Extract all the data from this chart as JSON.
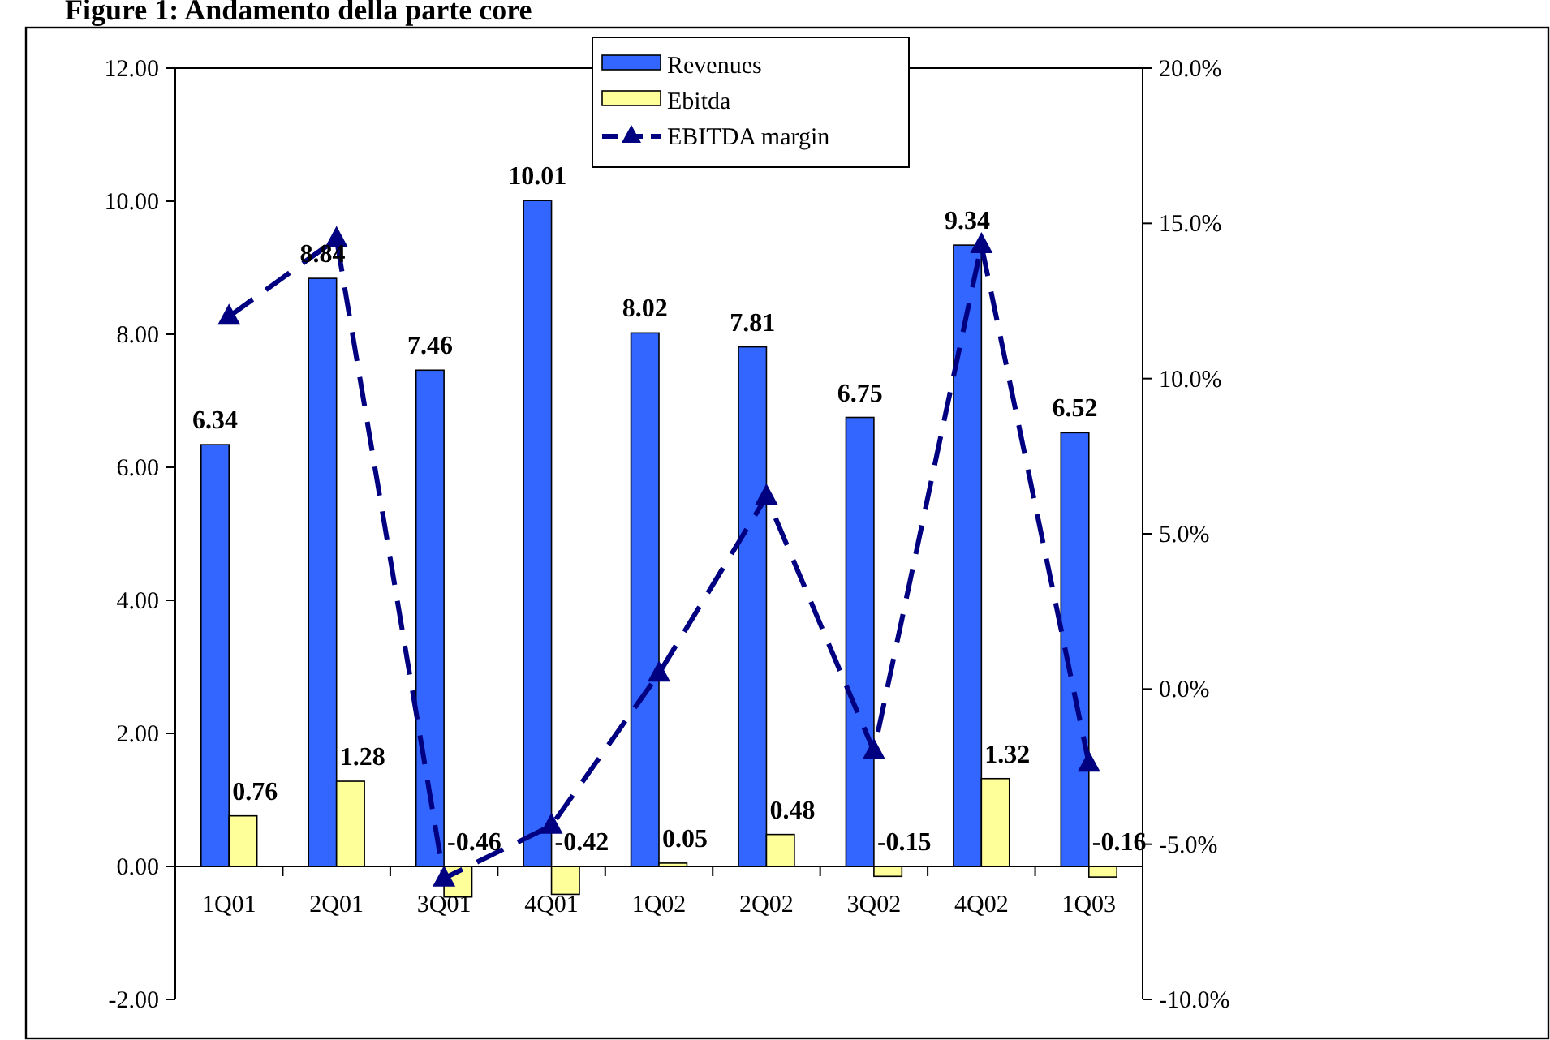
{
  "chart_data": {
    "type": "bar",
    "title": "Figure 1: Andamento della parte core",
    "categories": [
      "1Q01",
      "2Q01",
      "3Q01",
      "4Q01",
      "1Q02",
      "2Q02",
      "3Q02",
      "4Q02",
      "1Q03"
    ],
    "series": [
      {
        "name": "Revenues",
        "color": "#3366ff",
        "values": [
          6.34,
          8.84,
          7.46,
          10.01,
          8.02,
          7.81,
          6.75,
          9.34,
          6.52
        ],
        "value_labels": [
          "6.34",
          "8.84",
          "7.46",
          "10.01",
          "8.02",
          "7.81",
          "6.75",
          "9.34",
          "6.52"
        ]
      },
      {
        "name": "Ebitda",
        "color": "#ffff99",
        "values": [
          0.76,
          1.28,
          -0.46,
          -0.42,
          0.05,
          0.48,
          -0.15,
          1.32,
          -0.16
        ],
        "value_labels": [
          "0.76",
          "1.28",
          "-0.46",
          "-0.42",
          "0.05",
          "0.48",
          "-0.15",
          "1.32",
          "-0.16"
        ]
      },
      {
        "name": "EBITDA margin",
        "type": "line",
        "axis": "y2",
        "color": "#000080",
        "marker": "triangle",
        "line_style": "dashed",
        "values": [
          12.0,
          14.5,
          -6.1,
          -4.4,
          0.5,
          6.2,
          -2.0,
          14.3,
          -2.4
        ]
      }
    ],
    "ylim": [
      -2,
      12
    ],
    "yticks": [
      {
        "value": -2,
        "label": "-2.00"
      },
      {
        "value": 0,
        "label": "0.00"
      },
      {
        "value": 2,
        "label": "2.00"
      },
      {
        "value": 4,
        "label": "4.00"
      },
      {
        "value": 6,
        "label": "6.00"
      },
      {
        "value": 8,
        "label": "8.00"
      },
      {
        "value": 10,
        "label": "10.00"
      },
      {
        "value": 12,
        "label": "12.00"
      }
    ],
    "y2lim": [
      -10,
      20
    ],
    "y2ticks": [
      {
        "value": -10,
        "label": "-10.0%"
      },
      {
        "value": -5,
        "label": "-5.0%"
      },
      {
        "value": 0,
        "label": "0.0%"
      },
      {
        "value": 5,
        "label": "5.0%"
      },
      {
        "value": 10,
        "label": "10.0%"
      },
      {
        "value": 15,
        "label": "15.0%"
      },
      {
        "value": 20,
        "label": "20.0%"
      }
    ],
    "grid": false,
    "legend": "top"
  }
}
